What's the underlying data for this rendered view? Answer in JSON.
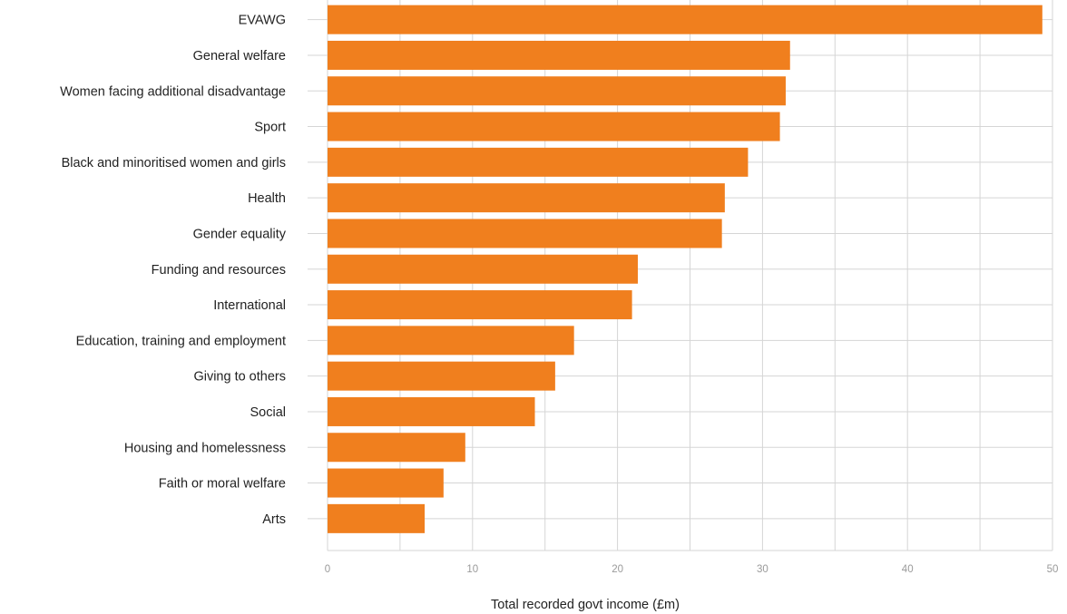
{
  "chart_data": {
    "type": "bar",
    "orientation": "horizontal",
    "categories": [
      "EVAWG",
      "General welfare",
      "Women facing additional disadvantage",
      "Sport",
      "Black and minoritised women and girls",
      "Health",
      "Gender equality",
      "Funding and resources",
      "International",
      "Education, training and employment",
      "Giving to others",
      "Social",
      "Housing and homelessness",
      "Faith or moral welfare",
      "Arts"
    ],
    "values": [
      49.3,
      31.9,
      31.6,
      31.2,
      29.0,
      27.4,
      27.2,
      21.4,
      21.0,
      17.0,
      15.7,
      14.3,
      9.5,
      8.0,
      6.7
    ],
    "xlabel": "Total recorded govt income (£m)",
    "ylabel": "",
    "xlim": [
      0,
      50
    ],
    "xticks": [
      "0",
      "10",
      "20",
      "30",
      "40",
      "50"
    ],
    "grid": true,
    "bar_color": "#F07F1E",
    "grid_color": "#D5D5D5"
  }
}
